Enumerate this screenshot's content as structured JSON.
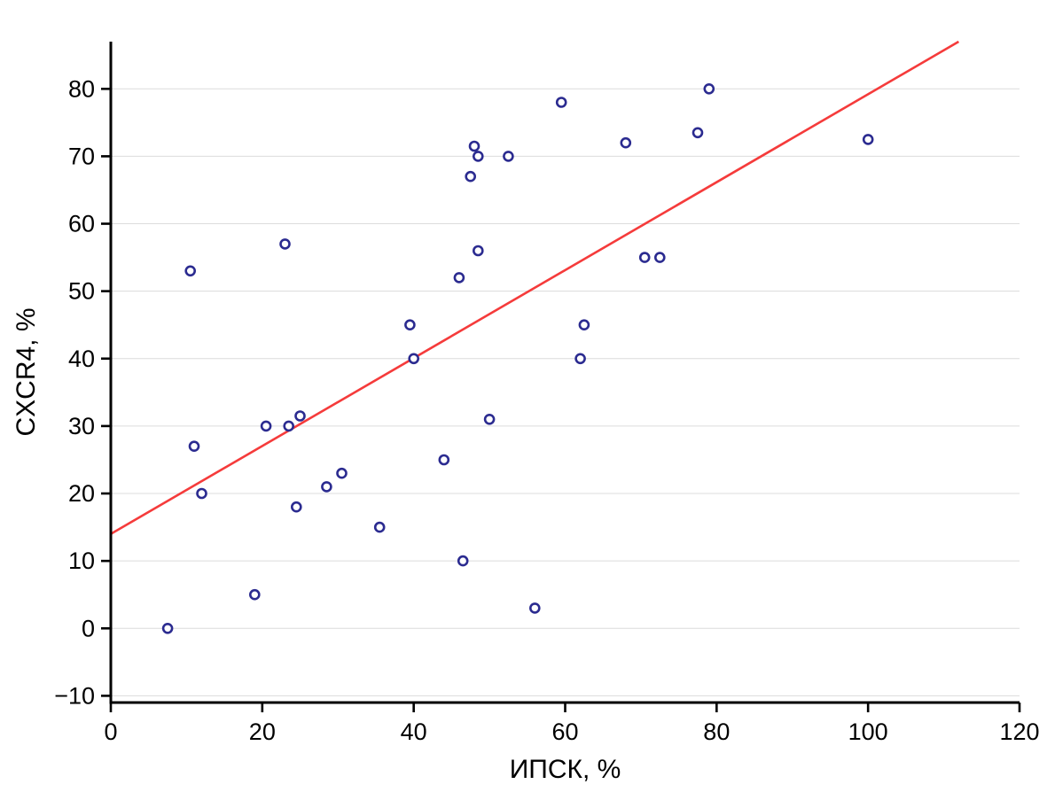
{
  "chart_data": {
    "type": "scatter",
    "title": "",
    "xlabel": "ИПСК, %",
    "ylabel": "CXCR4, %",
    "xlim": [
      0,
      120
    ],
    "ylim": [
      -11,
      87
    ],
    "x_ticks": [
      0,
      20,
      40,
      60,
      80,
      100,
      120
    ],
    "y_ticks": [
      -10,
      0,
      10,
      20,
      30,
      40,
      50,
      60,
      70,
      80
    ],
    "grid": "horizontal",
    "legend": "none",
    "points": [
      [
        7.5,
        0
      ],
      [
        10.5,
        53
      ],
      [
        11,
        27
      ],
      [
        12,
        20
      ],
      [
        19,
        5
      ],
      [
        20.5,
        30
      ],
      [
        23,
        57
      ],
      [
        23.5,
        30
      ],
      [
        24.5,
        18
      ],
      [
        25,
        31.5
      ],
      [
        28.5,
        21
      ],
      [
        30.5,
        23
      ],
      [
        35.5,
        15
      ],
      [
        39.5,
        45
      ],
      [
        40,
        40
      ],
      [
        44,
        25
      ],
      [
        46,
        52
      ],
      [
        46.5,
        10
      ],
      [
        47.5,
        67
      ],
      [
        48,
        71.5
      ],
      [
        48.5,
        70
      ],
      [
        48.5,
        56
      ],
      [
        50,
        31
      ],
      [
        52.5,
        70
      ],
      [
        56,
        3
      ],
      [
        59.5,
        78
      ],
      [
        62,
        40
      ],
      [
        62.5,
        45
      ],
      [
        68,
        72
      ],
      [
        70.5,
        55
      ],
      [
        72.5,
        55
      ],
      [
        77.5,
        73.5
      ],
      [
        79,
        80
      ],
      [
        100,
        72.5
      ]
    ],
    "trend_line": {
      "intercept": 14,
      "slope": 0.652,
      "color": "#f53b3b"
    },
    "point_color": "#2b2b90",
    "point_fill": "#ffffff",
    "axis_color": "#000000",
    "grid_color": "#dcdcdc",
    "background": "#ffffff"
  }
}
